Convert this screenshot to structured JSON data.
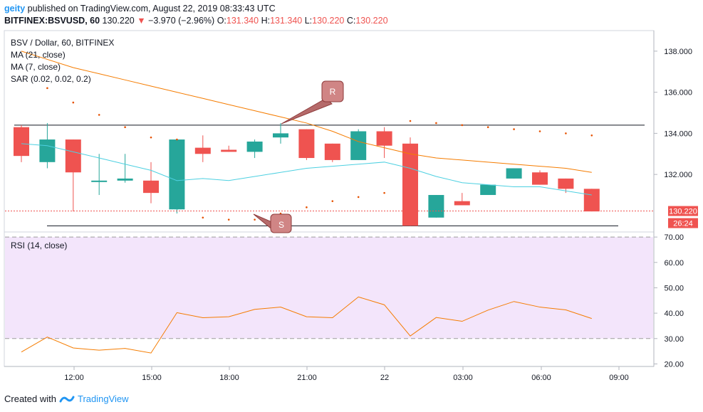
{
  "header": {
    "line1_user": "geity",
    "line1_rest": "published on TradingView.com, August 22, 2019 08:33:43 UTC",
    "symbol": "BITFINEX:BSVUSD, 60",
    "last": "130.220",
    "change": "−3.970 (−2.96%)",
    "o_label": "O:",
    "o": "131.340",
    "h_label": "H:",
    "h": "131.340",
    "l_label": "L:",
    "l": "130.220",
    "c_label": "C:",
    "c": "130.220"
  },
  "legend": {
    "title": "BSV / Dollar, 60, BITFINEX",
    "ma21": "MA (21, close)",
    "ma7": "MA (7, close)",
    "sar": "SAR (0.02, 0.02, 0.2)",
    "rsi": "RSI (14, close)"
  },
  "price_tag": {
    "value": "130.220",
    "countdown": "26:24"
  },
  "annotations": {
    "resistance": "R",
    "support": "S"
  },
  "footer": {
    "created_with": "Created with",
    "brand": "TradingView"
  },
  "colors": {
    "up": "#26a69a",
    "down": "#ef5350",
    "ma21": "#f57c00",
    "ma7": "#4dd0e1",
    "sar": "#e65100",
    "rsi_line": "#f57c00",
    "rsi_band": "#f3e5fb"
  },
  "chart_data": [
    {
      "type": "candlestick",
      "title": "BSV / Dollar, 60, BITFINEX",
      "x_ticks": [
        "12:00",
        "15:00",
        "18:00",
        "21:00",
        "22",
        "03:00",
        "06:00",
        "09:00"
      ],
      "y_ticks": [
        "132.000",
        "134.000",
        "136.000",
        "138.000"
      ],
      "ylim": [
        129.2,
        139.0
      ],
      "candles": [
        {
          "o": 134.3,
          "h": 134.4,
          "l": 132.6,
          "c": 132.9
        },
        {
          "o": 132.6,
          "h": 134.5,
          "l": 132.3,
          "c": 133.7
        },
        {
          "o": 133.7,
          "h": 133.7,
          "l": 130.2,
          "c": 132.1
        },
        {
          "o": 131.7,
          "h": 133.0,
          "l": 131.0,
          "c": 131.7
        },
        {
          "o": 131.7,
          "h": 133.0,
          "l": 131.6,
          "c": 131.8
        },
        {
          "o": 131.7,
          "h": 132.6,
          "l": 130.6,
          "c": 131.1
        },
        {
          "o": 130.3,
          "h": 133.7,
          "l": 130.1,
          "c": 133.7
        },
        {
          "o": 133.3,
          "h": 133.9,
          "l": 132.6,
          "c": 133.0
        },
        {
          "o": 133.2,
          "h": 133.4,
          "l": 133.1,
          "c": 133.1
        },
        {
          "o": 133.1,
          "h": 133.7,
          "l": 132.8,
          "c": 133.6
        },
        {
          "o": 133.8,
          "h": 134.5,
          "l": 133.5,
          "c": 134.0
        },
        {
          "o": 134.2,
          "h": 134.2,
          "l": 132.7,
          "c": 132.8
        },
        {
          "o": 133.5,
          "h": 133.5,
          "l": 132.6,
          "c": 132.7
        },
        {
          "o": 132.7,
          "h": 134.2,
          "l": 132.7,
          "c": 134.1
        },
        {
          "o": 134.1,
          "h": 134.3,
          "l": 132.8,
          "c": 133.4
        },
        {
          "o": 133.5,
          "h": 133.8,
          "l": 129.5,
          "c": 129.5
        },
        {
          "o": 129.9,
          "h": 131.0,
          "l": 129.9,
          "c": 131.0
        },
        {
          "o": 130.7,
          "h": 131.1,
          "l": 130.5,
          "c": 130.5
        },
        {
          "o": 131.0,
          "h": 131.5,
          "l": 131.0,
          "c": 131.5
        },
        {
          "o": 131.8,
          "h": 132.3,
          "l": 131.8,
          "c": 132.3
        },
        {
          "o": 132.1,
          "h": 132.2,
          "l": 131.5,
          "c": 131.5
        },
        {
          "o": 131.8,
          "h": 131.8,
          "l": 131.1,
          "c": 131.3
        },
        {
          "o": 131.3,
          "h": 131.3,
          "l": 130.2,
          "c": 130.2
        }
      ],
      "ma21": [
        138.0,
        137.6,
        137.2,
        136.9,
        136.6,
        136.3,
        136.0,
        135.7,
        135.4,
        135.1,
        134.8,
        134.5,
        134.1,
        133.6,
        133.3,
        133.0,
        132.8,
        132.7,
        132.6,
        132.5,
        132.4,
        132.3,
        132.1
      ],
      "ma7": [
        133.5,
        133.4,
        133.1,
        132.8,
        132.5,
        132.2,
        131.7,
        131.8,
        131.7,
        131.9,
        132.1,
        132.3,
        132.4,
        132.5,
        132.6,
        132.3,
        131.9,
        131.6,
        131.5,
        131.4,
        131.4,
        131.2,
        131.0
      ],
      "sar": [
        null,
        136.2,
        135.5,
        134.9,
        134.3,
        133.8,
        133.7,
        129.9,
        129.8,
        129.8,
        130.1,
        130.4,
        130.7,
        130.9,
        131.1,
        134.6,
        134.5,
        134.4,
        134.3,
        134.2,
        134.1,
        134.0,
        133.9
      ],
      "horizontal_lines": [
        {
          "label": "R",
          "y": 134.4
        },
        {
          "label": "S",
          "y": 129.5
        }
      ],
      "last_price": 130.22
    },
    {
      "type": "line",
      "title": "RSI (14, close)",
      "y_ticks": [
        "20.00",
        "30.00",
        "40.00",
        "50.00",
        "60.00",
        "70.00"
      ],
      "ylim": [
        19.0,
        72.0
      ],
      "band": [
        30,
        70
      ],
      "values": [
        24.7,
        30.6,
        26.3,
        25.4,
        26.1,
        24.3,
        40.2,
        38.2,
        38.6,
        41.5,
        42.4,
        38.6,
        38.2,
        46.4,
        43.3,
        31.0,
        38.3,
        36.8,
        41.2,
        44.6,
        42.4,
        41.3,
        37.9
      ]
    }
  ]
}
